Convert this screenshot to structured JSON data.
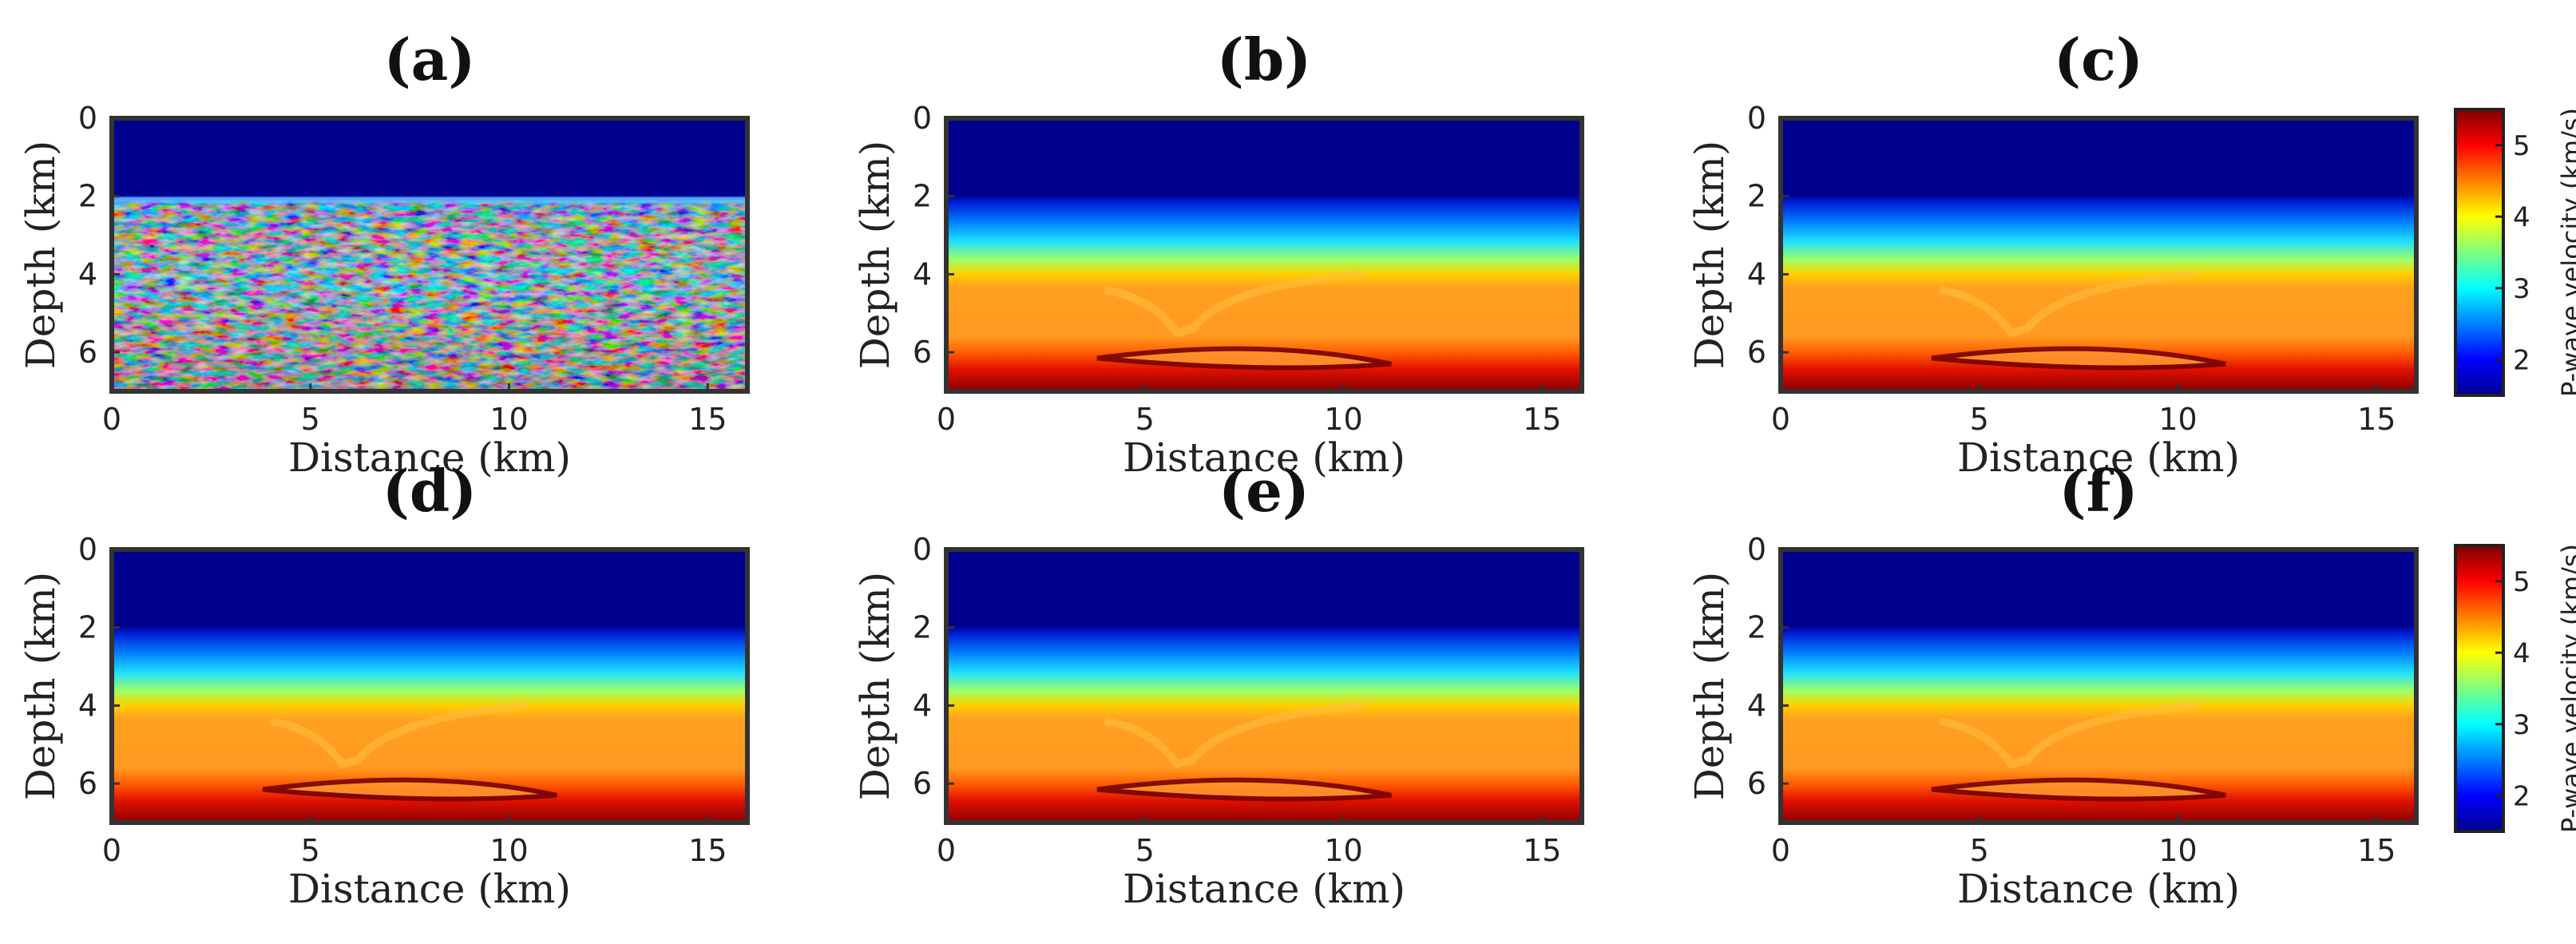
{
  "chart_data": {
    "type": "heatmap",
    "description_units": "P-wave velocity (km/s)",
    "panels": [
      {
        "id": "a",
        "title": "(a)",
        "variant": "noisy"
      },
      {
        "id": "b",
        "title": "(b)",
        "variant": "smooth"
      },
      {
        "id": "c",
        "title": "(c)",
        "variant": "smooth"
      },
      {
        "id": "d",
        "title": "(d)",
        "variant": "smooth"
      },
      {
        "id": "e",
        "title": "(e)",
        "variant": "smooth"
      },
      {
        "id": "f",
        "title": "(f)",
        "variant": "smooth"
      }
    ],
    "xlabel": "Distance (km)",
    "ylabel": "Depth (km)",
    "xlim": [
      0,
      16
    ],
    "ylim": [
      0,
      7
    ],
    "x_ticks": [
      0,
      5,
      10,
      15
    ],
    "y_ticks": [
      0,
      2,
      4,
      6
    ],
    "colorbar": {
      "label": "P-wave velocity (km/s)",
      "range": [
        1.5,
        5.5
      ],
      "ticks": [
        2,
        3,
        4,
        5
      ],
      "colormap": "jet"
    },
    "model": {
      "water_bottom_depth_km": 2.1,
      "gradient_layer_km": [
        2.1,
        4.0
      ],
      "sediment_velocity_kms": 4.5,
      "salt_feature_center_km": 6.0,
      "deep_reflector_depth_km": 6.2,
      "max_velocity_kms": 5.5
    }
  }
}
